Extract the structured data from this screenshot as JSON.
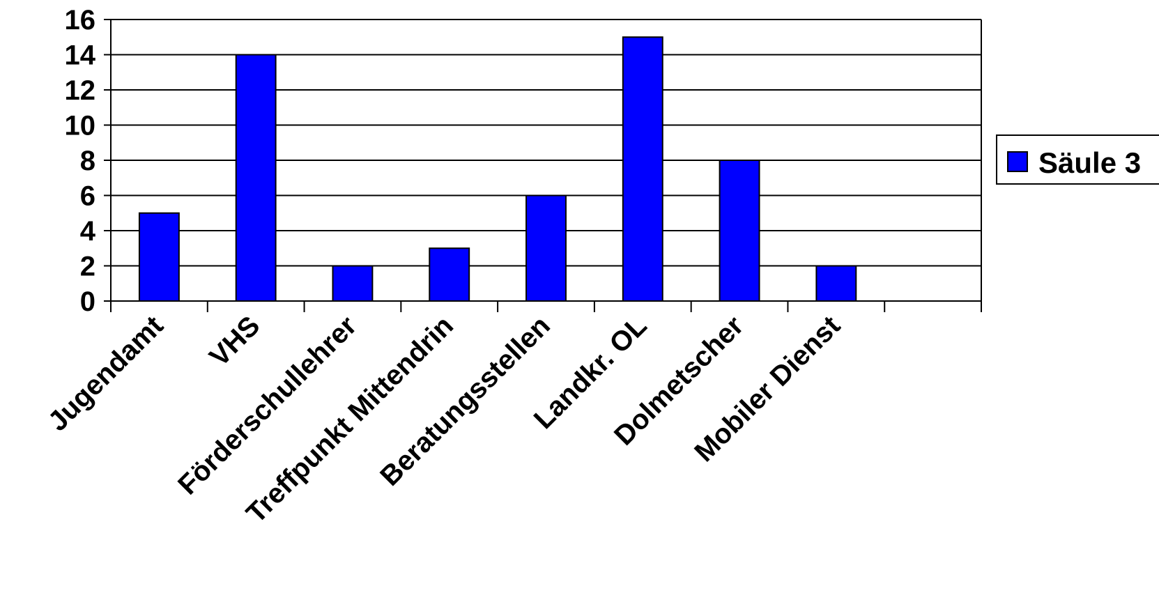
{
  "chart_data": {
    "type": "bar",
    "categories": [
      "Jugendamt",
      "VHS",
      "Förderschullehrer",
      "Treffpunkt Mittendrin",
      "Beratungsstellen",
      "Landkr. OL",
      "Dolmetscher",
      "Mobiler Dienst",
      ""
    ],
    "series": [
      {
        "name": "Säule 3",
        "values": [
          5,
          14,
          2,
          3,
          6,
          15,
          8,
          2,
          null
        ],
        "color": "#0000ff"
      }
    ],
    "yticks": [
      "0",
      "2",
      "4",
      "6",
      "8",
      "10",
      "12",
      "14",
      "16"
    ],
    "ylim": [
      0,
      16
    ],
    "grid": true,
    "legend_position": "right"
  }
}
